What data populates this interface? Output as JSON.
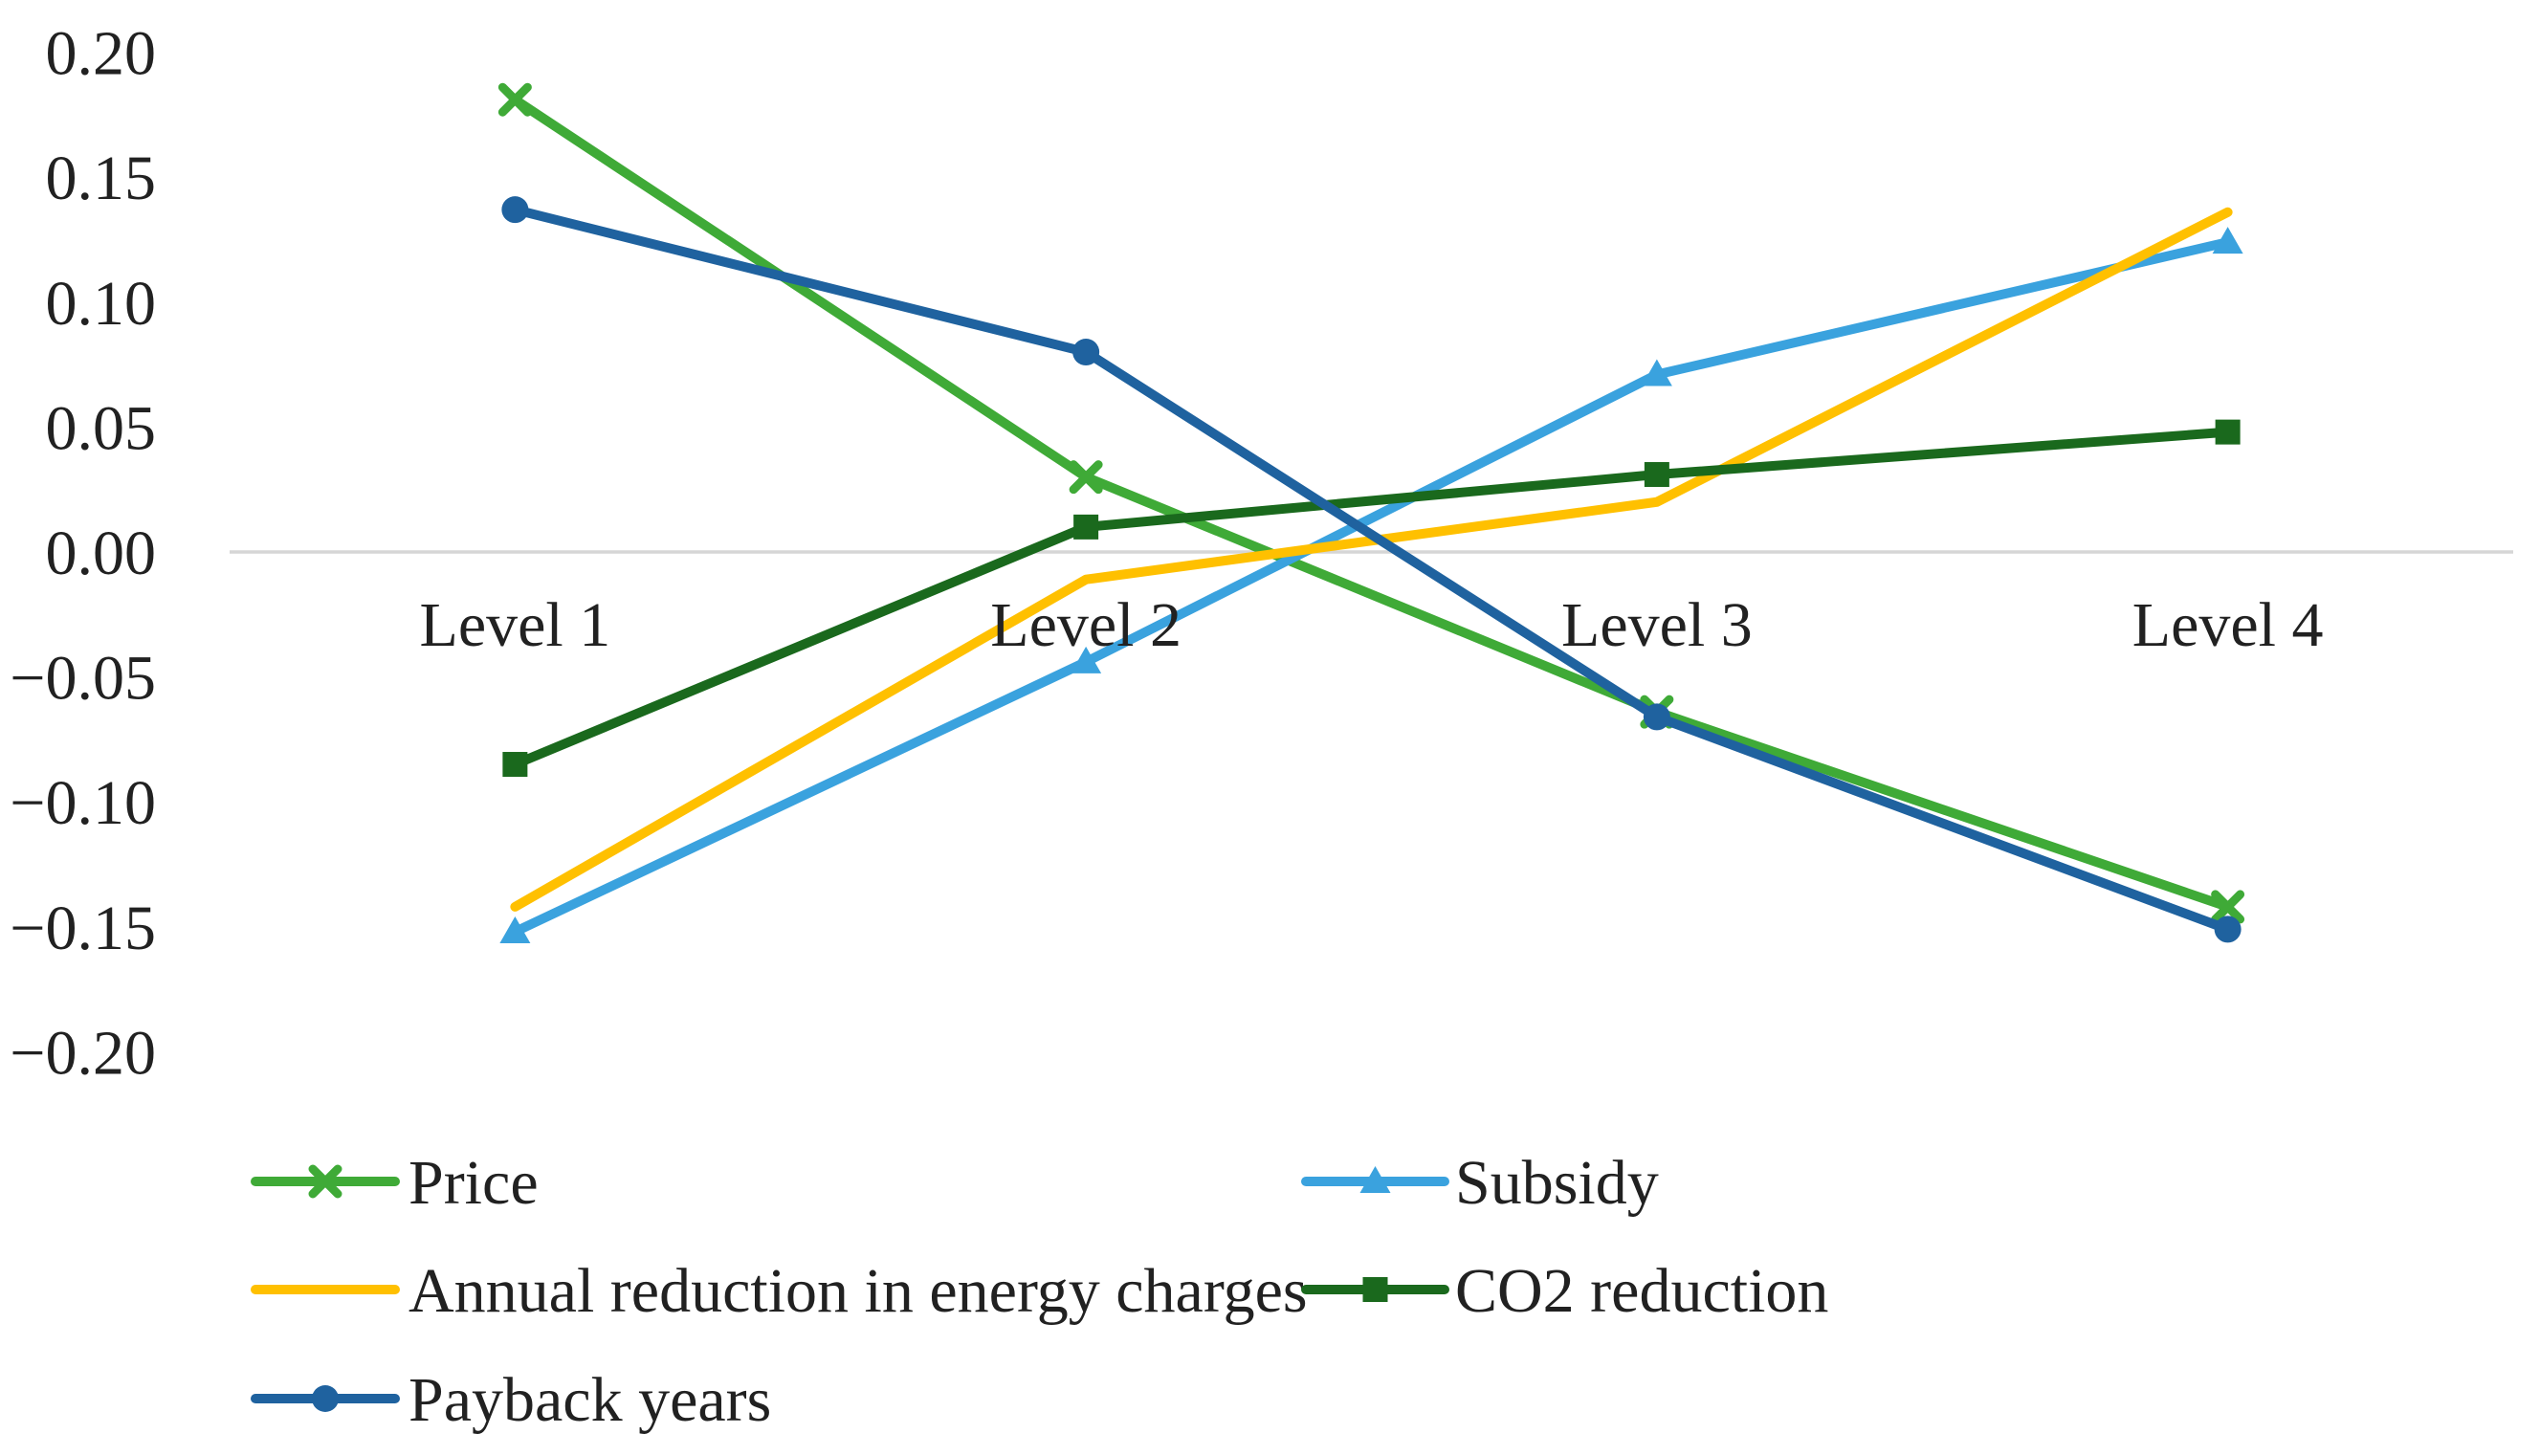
{
  "chart_data": {
    "type": "line",
    "title": "",
    "categories": [
      "Level 1",
      "Level 2",
      "Level 3",
      "Level 4"
    ],
    "series": [
      {
        "name": "Price",
        "color": "#3faa37",
        "marker": "x",
        "values": [
          0.181,
          0.03,
          -0.064,
          -0.142
        ]
      },
      {
        "name": "Subsidy",
        "color": "#3aa2de",
        "marker": "triangle",
        "values": [
          -0.152,
          -0.044,
          0.071,
          0.124
        ]
      },
      {
        "name": "Annual reduction in energy charges",
        "color": "#ffc000",
        "marker": "none",
        "values": [
          -0.142,
          -0.011,
          0.02,
          0.136
        ]
      },
      {
        "name": "CO2 reduction",
        "color": "#1a691d",
        "marker": "square",
        "values": [
          -0.085,
          0.01,
          0.031,
          0.048
        ]
      },
      {
        "name": "Payback years",
        "color": "#1f629f",
        "marker": "circle",
        "values": [
          0.137,
          0.08,
          -0.066,
          -0.151
        ]
      }
    ],
    "y_axis": {
      "min": -0.2,
      "max": 0.2,
      "step": 0.05,
      "ticks": [
        {
          "value": 0.2,
          "label": "0.20"
        },
        {
          "value": 0.15,
          "label": "0.15"
        },
        {
          "value": 0.1,
          "label": "0.10"
        },
        {
          "value": 0.05,
          "label": "0.05"
        },
        {
          "value": 0.0,
          "label": "0.00"
        },
        {
          "value": -0.05,
          "label": "−0.05"
        },
        {
          "value": -0.1,
          "label": "−0.10"
        },
        {
          "value": -0.15,
          "label": "−0.15"
        },
        {
          "value": -0.2,
          "label": "−0.20"
        }
      ]
    },
    "xlabel": "",
    "ylabel": "",
    "grid": "zero-line-only",
    "gridline_color": "#d6d6d6",
    "text_color": "#212121",
    "legend_position": "bottom-left",
    "legend_rows": [
      [
        "Price",
        "Subsidy"
      ],
      [
        "Annual reduction in energy charges",
        "CO2 reduction"
      ],
      [
        "Payback years"
      ]
    ]
  }
}
